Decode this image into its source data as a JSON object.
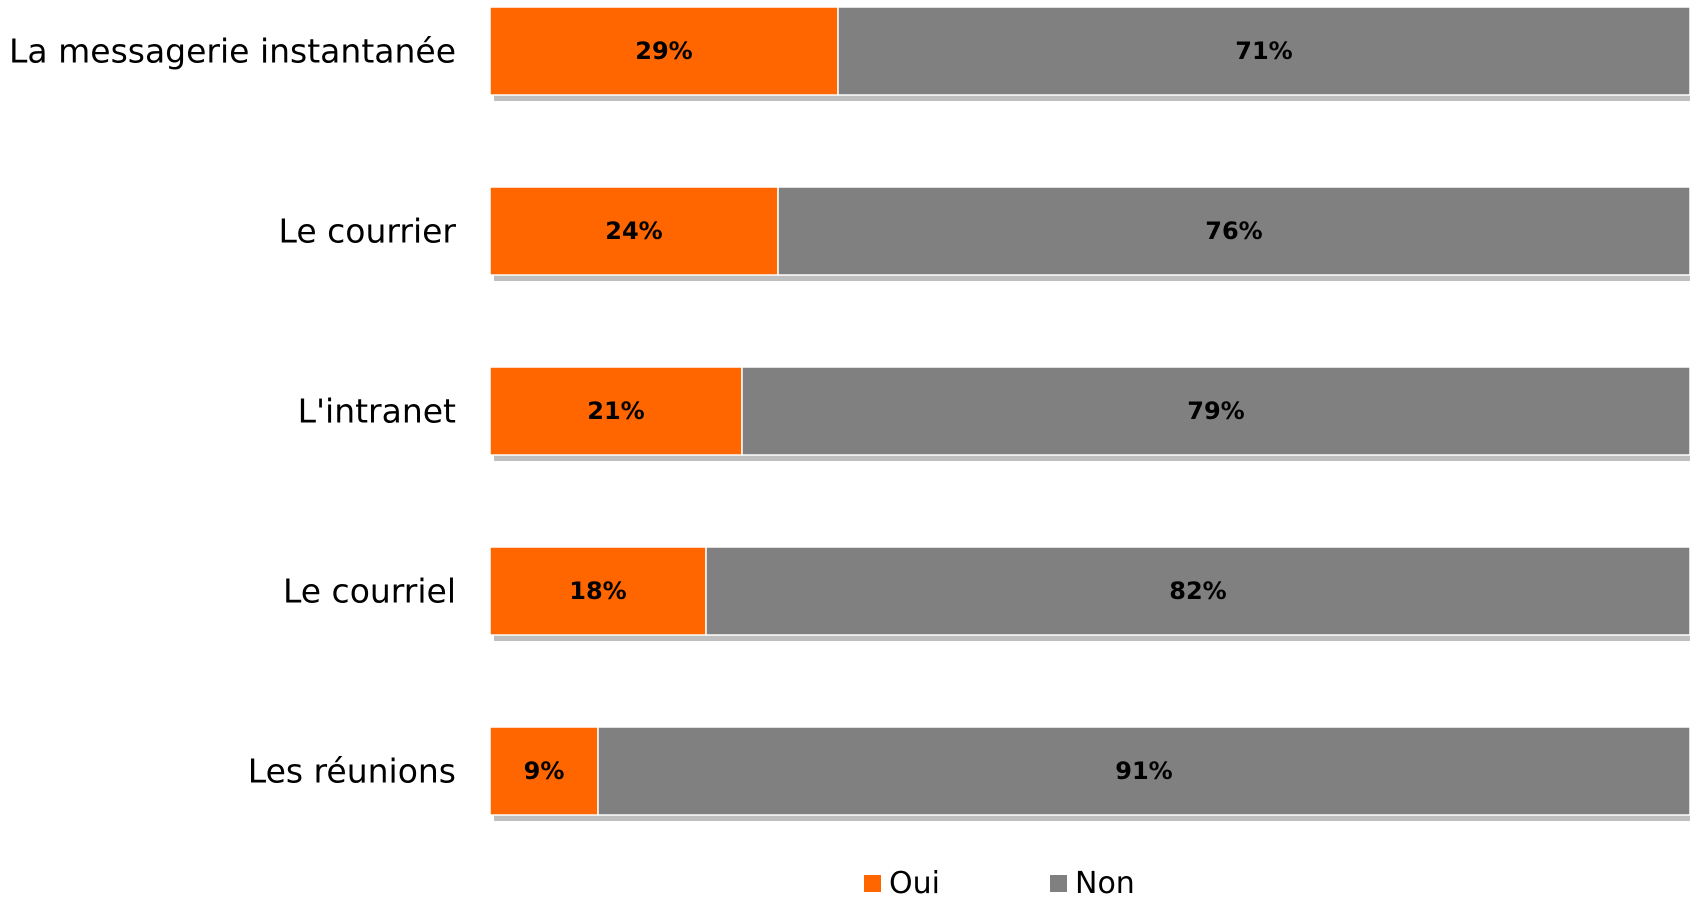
{
  "chart_data": {
    "type": "bar",
    "orientation": "horizontal",
    "stacked": "percent",
    "categories": [
      "La messagerie instantanée",
      "Le courrier",
      "L'intranet",
      "Le courriel",
      "Les réunions"
    ],
    "series": [
      {
        "name": "Oui",
        "color": "#FF6600",
        "values": [
          29,
          24,
          21,
          18,
          9
        ],
        "labels": [
          "29%",
          "24%",
          "21%",
          "18%",
          "9%"
        ]
      },
      {
        "name": "Non",
        "color": "#808080",
        "values": [
          71,
          76,
          79,
          82,
          91
        ],
        "labels": [
          "71%",
          "76%",
          "79%",
          "82%",
          "91%"
        ]
      }
    ],
    "xlim": [
      0,
      100
    ],
    "grid": false,
    "legend": "bottom"
  }
}
